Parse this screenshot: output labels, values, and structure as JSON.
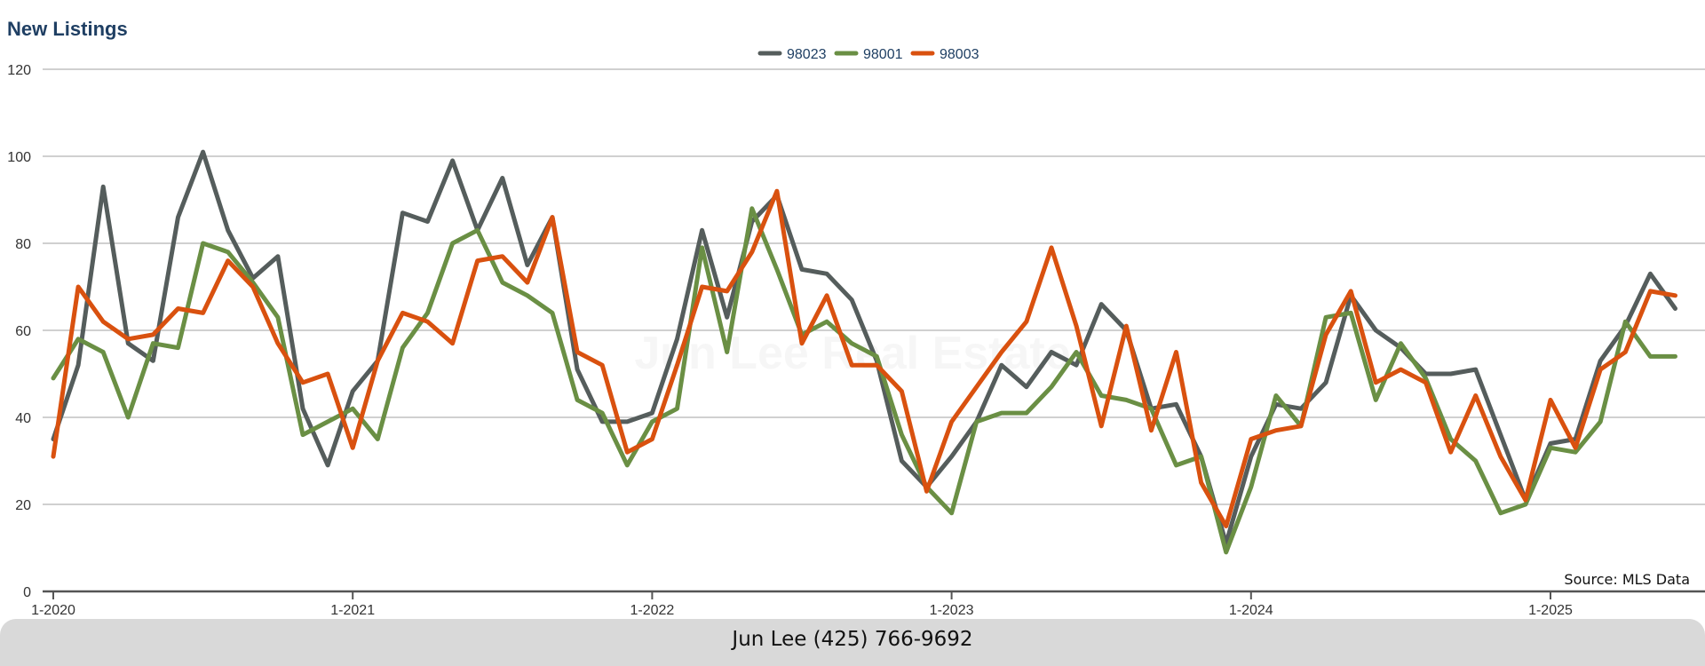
{
  "chart_data": {
    "type": "line",
    "title": "New Listings",
    "xlabel": "",
    "ylabel": "",
    "ylim": [
      0,
      120
    ],
    "yticks": [
      0,
      20,
      40,
      60,
      80,
      100,
      120
    ],
    "x_tick_labels": [
      "1-2020",
      "1-2021",
      "1-2022",
      "1-2023",
      "1-2024",
      "1-2025"
    ],
    "x_start": "2020-01",
    "x_end": "2025-06",
    "grid": true,
    "legend_position": "top-center",
    "series": [
      {
        "name": "98023",
        "color": "#555d5c",
        "values": [
          35,
          52,
          93,
          57,
          53,
          86,
          101,
          83,
          72,
          77,
          42,
          29,
          46,
          53,
          87,
          85,
          99,
          83,
          95,
          75,
          86,
          51,
          39,
          39,
          41,
          58,
          83,
          63,
          85,
          91,
          74,
          73,
          67,
          53,
          30,
          24,
          31,
          39,
          52,
          47,
          55,
          52,
          66,
          60,
          42,
          43,
          31,
          11,
          31,
          43,
          42,
          48,
          68,
          60,
          56,
          50,
          50,
          51,
          36,
          21,
          34,
          35,
          53,
          61,
          73,
          65
        ]
      },
      {
        "name": "98001",
        "color": "#6a8f44",
        "values": [
          49,
          58,
          55,
          40,
          57,
          56,
          80,
          78,
          71,
          63,
          36,
          39,
          42,
          35,
          56,
          64,
          80,
          83,
          71,
          68,
          64,
          44,
          41,
          29,
          39,
          42,
          79,
          55,
          88,
          74,
          59,
          62,
          57,
          54,
          36,
          24,
          18,
          39,
          41,
          41,
          47,
          55,
          45,
          44,
          42,
          29,
          31,
          9,
          24,
          45,
          38,
          63,
          64,
          44,
          57,
          49,
          35,
          30,
          18,
          20,
          33,
          32,
          39,
          62,
          54,
          54
        ]
      },
      {
        "name": "98003",
        "color": "#d9510f",
        "values": [
          31,
          70,
          62,
          58,
          59,
          65,
          64,
          76,
          70,
          57,
          48,
          50,
          33,
          53,
          64,
          62,
          57,
          76,
          77,
          71,
          86,
          55,
          52,
          32,
          35,
          52,
          70,
          69,
          78,
          92,
          57,
          68,
          52,
          52,
          46,
          23,
          39,
          47,
          55,
          62,
          79,
          61,
          38,
          61,
          37,
          55,
          25,
          15,
          35,
          37,
          38,
          59,
          69,
          48,
          51,
          48,
          32,
          45,
          31,
          21,
          44,
          33,
          51,
          55,
          69,
          68
        ]
      }
    ],
    "annotation": "Source: MLS Data"
  },
  "watermark": "Jun Lee Real Estate",
  "footer": {
    "contact": "Jun Lee (425) 766-9692"
  }
}
